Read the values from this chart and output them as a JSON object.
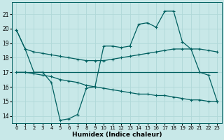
{
  "xlabel": "Humidex (Indice chaleur)",
  "ylabel": "",
  "xlim": [
    -0.5,
    23.5
  ],
  "ylim": [
    13.5,
    21.8
  ],
  "yticks": [
    14,
    15,
    16,
    17,
    18,
    19,
    20,
    21
  ],
  "xticks": [
    0,
    1,
    2,
    3,
    4,
    5,
    6,
    7,
    8,
    9,
    10,
    11,
    12,
    13,
    14,
    15,
    16,
    17,
    18,
    19,
    20,
    21,
    22,
    23
  ],
  "bg_color": "#c8e8e8",
  "grid_color": "#b0d8d8",
  "line_color": "#006060",
  "line1_y": [
    19.9,
    18.6,
    18.4,
    18.3,
    18.2,
    18.1,
    18.0,
    17.9,
    17.8,
    17.8,
    17.8,
    17.9,
    18.0,
    18.1,
    18.2,
    18.3,
    18.4,
    18.5,
    18.6,
    18.6,
    18.6,
    18.6,
    18.5,
    18.4
  ],
  "line2_y": [
    19.9,
    18.6,
    17.0,
    17.0,
    16.3,
    13.7,
    13.8,
    14.1,
    15.9,
    16.0,
    18.8,
    18.8,
    18.7,
    18.8,
    20.3,
    20.4,
    20.1,
    21.2,
    21.2,
    19.1,
    18.6,
    17.0,
    16.8,
    15.0
  ],
  "line3_y": [
    17.0,
    17.0,
    17.0,
    17.0,
    17.0,
    17.0,
    17.0,
    17.0,
    17.0,
    17.0,
    17.0,
    17.0,
    17.0,
    17.0,
    17.0,
    17.0,
    17.0,
    17.0,
    17.0,
    17.0,
    17.0,
    17.0,
    17.0,
    17.0
  ],
  "line4_y": [
    17.0,
    17.0,
    16.9,
    16.8,
    16.7,
    16.5,
    16.4,
    16.3,
    16.1,
    16.0,
    15.9,
    15.8,
    15.7,
    15.6,
    15.5,
    15.5,
    15.4,
    15.4,
    15.3,
    15.2,
    15.1,
    15.1,
    15.0,
    15.0
  ]
}
